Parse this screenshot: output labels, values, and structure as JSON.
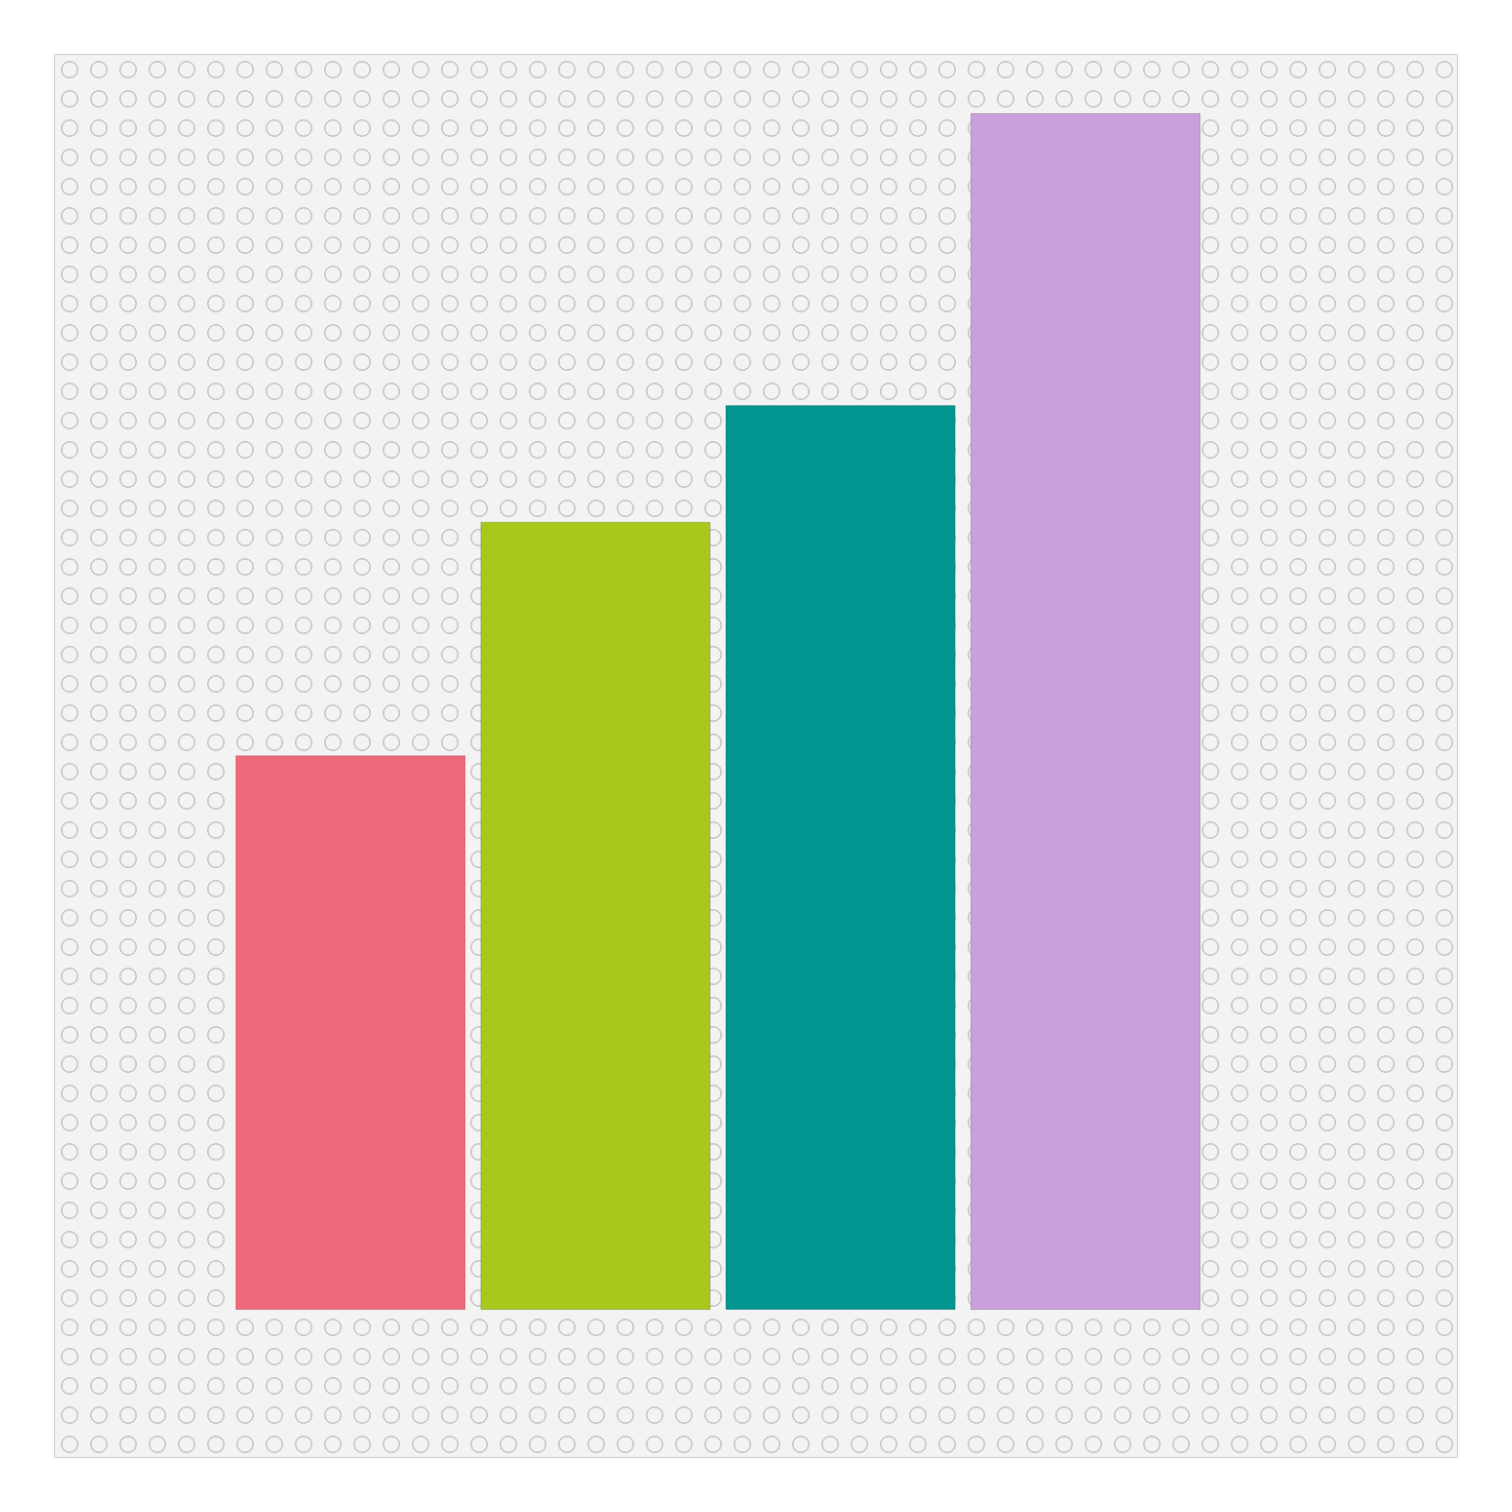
{
  "chart_data": {
    "type": "bar",
    "categories": [
      null,
      null,
      null,
      null
    ],
    "values": [
      19,
      27,
      31,
      41
    ],
    "colors": [
      "#f0697a",
      "#a8c81c",
      "#00968f",
      "#c9a0dc"
    ],
    "ylim": [
      0,
      41
    ],
    "grid": false,
    "tick_labels": false
  }
}
